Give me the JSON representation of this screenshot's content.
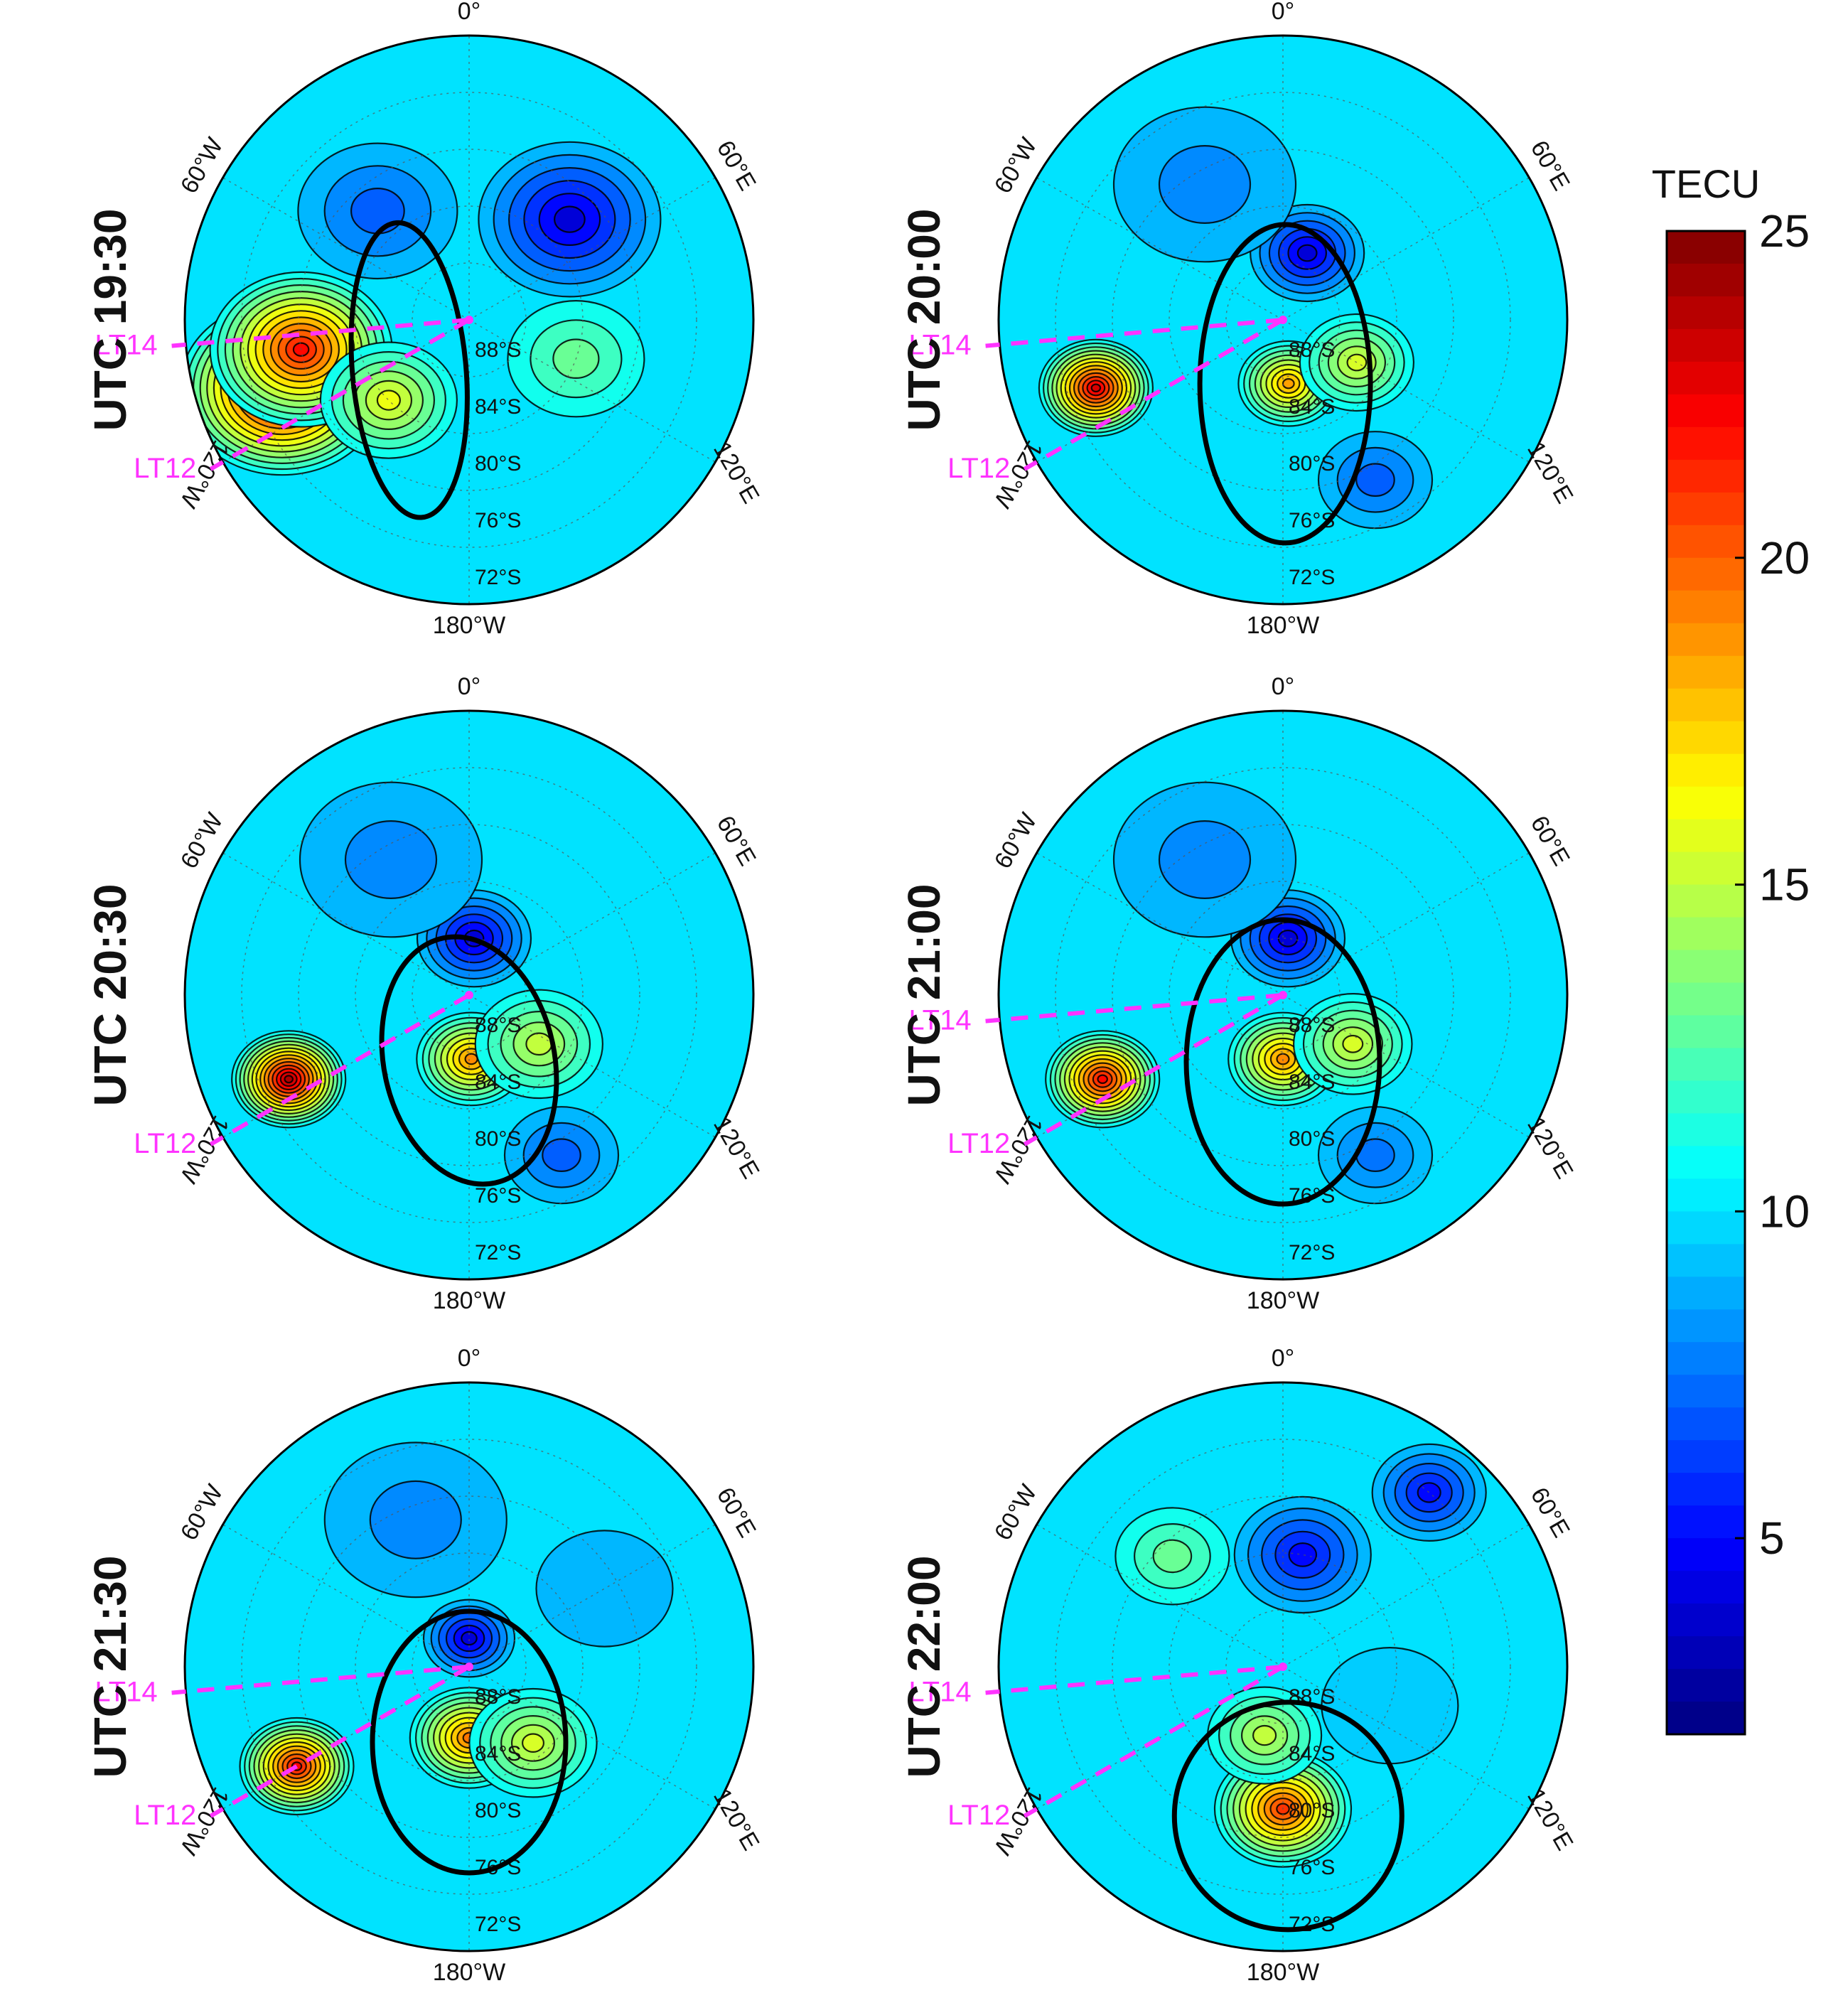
{
  "chart_data": {
    "type": "heatmap",
    "projection": "south-polar stereographic",
    "colorbar": {
      "title": "TECU",
      "min": 2,
      "max": 25,
      "ticks": [
        5,
        10,
        15,
        20,
        25
      ],
      "tick_labels": [
        "5",
        "10",
        "15",
        "20",
        "25"
      ],
      "colormap": "jet",
      "stops": [
        "#00007f",
        "#0000ff",
        "#007fff",
        "#00ffff",
        "#7fff7f",
        "#ffff00",
        "#ff7f00",
        "#ff0000",
        "#7f0000"
      ]
    },
    "meridian_labels": [
      "0°",
      "60°E",
      "120°E",
      "180°W",
      "120°W",
      "60°W"
    ],
    "latitude_labels": [
      "88°S",
      "84°S",
      "80°S",
      "76°S",
      "72°S"
    ],
    "panels": [
      {
        "time_label": "UTC 19:30",
        "lt_labels": [
          "LT14",
          "LT12"
        ],
        "blobs": [
          {
            "lon": -110,
            "colat": 14,
            "value": 25,
            "spread": 4.5
          },
          {
            "lon": -100,
            "colat": 12,
            "value": 22,
            "spread": 4
          },
          {
            "lon": -135,
            "colat": 8,
            "value": 16,
            "spread": 3
          },
          {
            "lon": 45,
            "colat": 10,
            "value": 4,
            "spread": 4
          },
          {
            "lon": 110,
            "colat": 8,
            "value": 13,
            "spread": 3
          },
          {
            "lon": -40,
            "colat": 10,
            "value": 7,
            "spread": 3.5
          }
        ],
        "ellipse": {
          "lon": -130,
          "colat": 5.5,
          "rx": 0.1,
          "ry": 0.26,
          "rot": -5
        }
      },
      {
        "time_label": "UTC 20:00",
        "lt_labels": [
          "LT14",
          "LT12"
        ],
        "blobs": [
          {
            "lon": -110,
            "colat": 14,
            "value": 23,
            "spread": 2.5
          },
          {
            "lon": 175,
            "colat": 4.5,
            "value": 18.5,
            "spread": 2.2
          },
          {
            "lon": 120,
            "colat": 6,
            "value": 15.5,
            "spread": 2.5
          },
          {
            "lon": 20,
            "colat": 5,
            "value": 4,
            "spread": 2.5
          },
          {
            "lon": -30,
            "colat": 11,
            "value": 8,
            "spread": 4
          },
          {
            "lon": 150,
            "colat": 13,
            "value": 7,
            "spread": 2.5
          }
        ],
        "ellipse": {
          "lon": 178,
          "colat": 4.5,
          "rx": 0.15,
          "ry": 0.28,
          "rot": 0
        }
      },
      {
        "time_label": "UTC 20:30",
        "lt_labels": [
          "LT12"
        ],
        "blobs": [
          {
            "lon": -115,
            "colat": 14,
            "value": 24,
            "spread": 2.5
          },
          {
            "lon": 178,
            "colat": 4.5,
            "value": 19,
            "spread": 2.4
          },
          {
            "lon": 125,
            "colat": 6,
            "value": 15,
            "spread": 2.8
          },
          {
            "lon": 5,
            "colat": 4,
            "value": 4,
            "spread": 2.5
          },
          {
            "lon": -30,
            "colat": 11,
            "value": 8,
            "spread": 4
          },
          {
            "lon": 150,
            "colat": 13,
            "value": 7,
            "spread": 2.5
          }
        ],
        "ellipse": {
          "lon": 180,
          "colat": 4.6,
          "rx": 0.15,
          "ry": 0.22,
          "rot": -12
        }
      },
      {
        "time_label": "UTC 21:00",
        "lt_labels": [
          "LT14",
          "LT12"
        ],
        "blobs": [
          {
            "lon": -115,
            "colat": 14,
            "value": 22,
            "spread": 2.5
          },
          {
            "lon": 180,
            "colat": 4.5,
            "value": 19,
            "spread": 2.4
          },
          {
            "lon": 125,
            "colat": 6,
            "value": 15.5,
            "spread": 2.6
          },
          {
            "lon": 5,
            "colat": 4,
            "value": 4,
            "spread": 2.5
          },
          {
            "lon": -30,
            "colat": 11,
            "value": 8,
            "spread": 4
          },
          {
            "lon": 150,
            "colat": 13,
            "value": 7.5,
            "spread": 2.5
          }
        ],
        "ellipse": {
          "lon": 180,
          "colat": 4.7,
          "rx": 0.17,
          "ry": 0.25,
          "rot": 0
        }
      },
      {
        "time_label": "UTC 21:30",
        "lt_labels": [
          "LT14",
          "LT12"
        ],
        "blobs": [
          {
            "lon": -120,
            "colat": 14,
            "value": 22,
            "spread": 2.5
          },
          {
            "lon": 180,
            "colat": 5,
            "value": 19.5,
            "spread": 2.6
          },
          {
            "lon": 140,
            "colat": 7,
            "value": 15.5,
            "spread": 2.8
          },
          {
            "lon": 0,
            "colat": 2,
            "value": 4,
            "spread": 2
          },
          {
            "lon": -20,
            "colat": 11,
            "value": 8,
            "spread": 4
          },
          {
            "lon": 60,
            "colat": 11,
            "value": 9,
            "spread": 3
          }
        ],
        "ellipse": {
          "lon": 180,
          "colat": 5.3,
          "rx": 0.17,
          "ry": 0.23,
          "rot": 0
        }
      },
      {
        "time_label": "UTC 22:00",
        "lt_labels": [
          "LT14",
          "LT12"
        ],
        "blobs": [
          {
            "lon": 180,
            "colat": 10,
            "value": 21,
            "spread": 3
          },
          {
            "lon": -165,
            "colat": 5,
            "value": 15,
            "spread": 2.5
          },
          {
            "lon": -45,
            "colat": 11,
            "value": 13,
            "spread": 2.5
          },
          {
            "lon": 10,
            "colat": 8,
            "value": 5,
            "spread": 3
          },
          {
            "lon": 110,
            "colat": 8,
            "value": 9.5,
            "spread": 3
          },
          {
            "lon": 40,
            "colat": 16,
            "value": 5,
            "spread": 2.5
          }
        ],
        "ellipse": {
          "lon": 178,
          "colat": 10.5,
          "rx": 0.2,
          "ry": 0.2,
          "rot": 0
        }
      }
    ]
  }
}
